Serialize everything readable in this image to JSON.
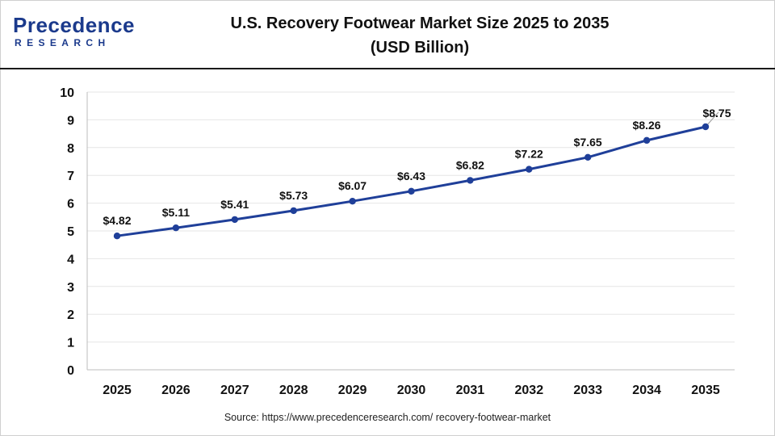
{
  "brand": {
    "name": "Precedence",
    "sub": "RESEARCH"
  },
  "title": {
    "line1": "U.S. Recovery Footwear Market Size 2025 to 2035",
    "line2": "(USD Billion)"
  },
  "source": "Source: https://www.precedenceresearch.com/ recovery-footwear-market",
  "colors": {
    "line": "#1f3f99",
    "grid": "#e6e6e6",
    "brand": "#1b3a8c"
  },
  "chart_data": {
    "type": "line",
    "title": "U.S. Recovery Footwear Market Size 2025 to 2035 (USD Billion)",
    "xlabel": "",
    "ylabel": "",
    "categories": [
      "2025",
      "2026",
      "2027",
      "2028",
      "2029",
      "2030",
      "2031",
      "2032",
      "2033",
      "2034",
      "2035"
    ],
    "values": [
      4.82,
      5.11,
      5.41,
      5.73,
      6.07,
      6.43,
      6.82,
      7.22,
      7.65,
      8.26,
      8.75
    ],
    "data_labels": [
      "$4.82",
      "$5.11",
      "$5.41",
      "$5.73",
      "$6.07",
      "$6.43",
      "$6.82",
      "$7.22",
      "$7.65",
      "$8.26",
      "$8.75"
    ],
    "ylim": [
      0,
      10
    ],
    "yticks": [
      0,
      1,
      2,
      3,
      4,
      5,
      6,
      7,
      8,
      9,
      10
    ],
    "grid": true,
    "legend": "none"
  }
}
